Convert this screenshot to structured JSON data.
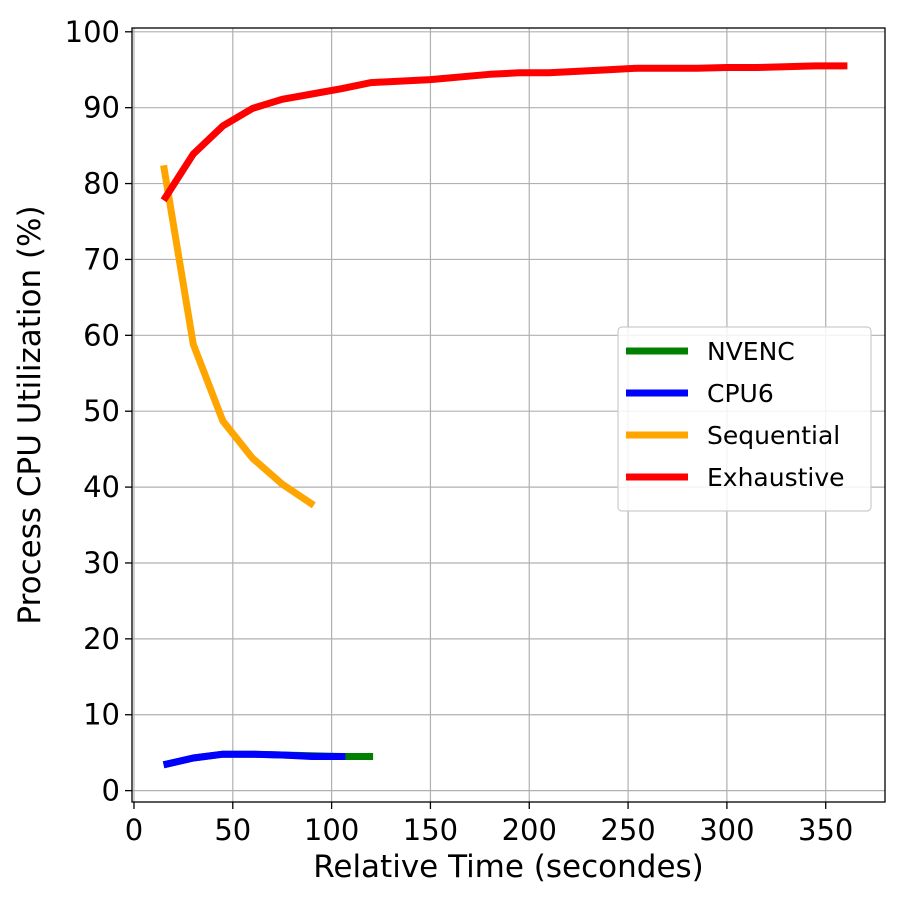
{
  "chart_data": {
    "type": "line",
    "title": "",
    "xlabel": "Relative Time (secondes)",
    "ylabel": "Process CPU Utilization (%)",
    "xlim": [
      -1,
      380
    ],
    "ylim": [
      -1.5,
      100.5
    ],
    "xticks": [
      0,
      50,
      100,
      150,
      200,
      250,
      300,
      350
    ],
    "yticks": [
      0,
      10,
      20,
      30,
      40,
      50,
      60,
      70,
      80,
      90,
      100
    ],
    "grid": true,
    "legend_position": "center-right",
    "series": [
      {
        "name": "NVENC",
        "color": "#008000",
        "x": [
          15,
          30,
          45,
          60,
          75,
          90,
          105,
          121
        ],
        "y": [
          3.4,
          4.3,
          4.8,
          4.8,
          4.7,
          4.6,
          4.5,
          4.5
        ]
      },
      {
        "name": "CPU6",
        "color": "#0000ff",
        "x": [
          15,
          30,
          45,
          60,
          75,
          90,
          107
        ],
        "y": [
          3.4,
          4.3,
          4.8,
          4.8,
          4.7,
          4.5,
          4.5
        ]
      },
      {
        "name": "Sequential",
        "color": "#ffa500",
        "x": [
          15,
          30,
          45,
          60,
          75,
          91
        ],
        "y": [
          82.4,
          58.8,
          48.7,
          43.8,
          40.4,
          37.6
        ]
      },
      {
        "name": "Exhaustive",
        "color": "#ff0000",
        "x": [
          15,
          30,
          45,
          60,
          75,
          90,
          105,
          120,
          150,
          180,
          195,
          210,
          240,
          255,
          285,
          300,
          315,
          345,
          361
        ],
        "y": [
          77.8,
          83.9,
          87.6,
          89.9,
          91.1,
          91.8,
          92.5,
          93.3,
          93.7,
          94.4,
          94.6,
          94.6,
          95.0,
          95.2,
          95.2,
          95.3,
          95.3,
          95.5,
          95.5
        ]
      }
    ]
  }
}
